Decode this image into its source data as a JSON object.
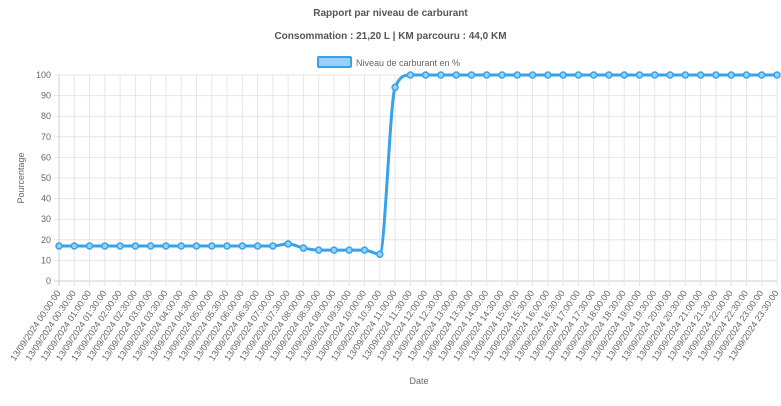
{
  "chart_data": {
    "type": "line",
    "title": "Rapport par niveau de carburant",
    "subtitle": "Consommation : 21,20 L | KM parcouru : 44,0 KM",
    "xlabel": "Date",
    "ylabel": "Pourcentage",
    "ylim": [
      0,
      100
    ],
    "yticks": [
      0,
      10,
      20,
      30,
      40,
      50,
      60,
      70,
      80,
      90,
      100
    ],
    "grid": true,
    "legend": "top",
    "categories": [
      "13/09/2024 00:00:00",
      "13/09/2024 00:30:00",
      "13/09/2024 01:00:00",
      "13/09/2024 01:30:00",
      "13/09/2024 02:00:00",
      "13/09/2024 02:30:00",
      "13/09/2024 03:00:00",
      "13/09/2024 03:30:00",
      "13/09/2024 04:00:00",
      "13/09/2024 04:30:00",
      "13/09/2024 05:00:00",
      "13/09/2024 05:30:00",
      "13/09/2024 06:00:00",
      "13/09/2024 06:30:00",
      "13/09/2024 07:00:00",
      "13/09/2024 07:30:00",
      "13/09/2024 08:00:00",
      "13/09/2024 08:30:00",
      "13/09/2024 09:00:00",
      "13/09/2024 09:30:00",
      "13/09/2024 10:00:00",
      "13/09/2024 10:30:00",
      "13/09/2024 11:00:00",
      "13/09/2024 11:30:00",
      "13/09/2024 12:00:00",
      "13/09/2024 12:30:00",
      "13/09/2024 13:00:00",
      "13/09/2024 13:30:00",
      "13/09/2024 14:00:00",
      "13/09/2024 14:30:00",
      "13/09/2024 15:00:00",
      "13/09/2024 15:30:00",
      "13/09/2024 16:00:00",
      "13/09/2024 16:30:00",
      "13/09/2024 17:00:00",
      "13/09/2024 17:30:00",
      "13/09/2024 18:00:00",
      "13/09/2024 18:30:00",
      "13/09/2024 19:00:00",
      "13/09/2024 19:30:00",
      "13/09/2024 20:00:00",
      "13/09/2024 20:30:00",
      "13/09/2024 21:00:00",
      "13/09/2024 21:30:00",
      "13/09/2024 22:00:00",
      "13/09/2024 22:30:00",
      "13/09/2024 23:00:00",
      "13/09/2024 23:30:00"
    ],
    "series": [
      {
        "name": "Niveau de carburant en %",
        "color": "#36a2eb",
        "fill": "#9ad0f5",
        "values": [
          17,
          17,
          17,
          17,
          17,
          17,
          17,
          17,
          17,
          17,
          17,
          17,
          17,
          17,
          17,
          18,
          16,
          15,
          15,
          15,
          15,
          13,
          94,
          100,
          100,
          100,
          100,
          100,
          100,
          100,
          100,
          100,
          100,
          100,
          100,
          100,
          100,
          100,
          100,
          100,
          100,
          100,
          100,
          100,
          100,
          100,
          100,
          100
        ]
      }
    ]
  }
}
